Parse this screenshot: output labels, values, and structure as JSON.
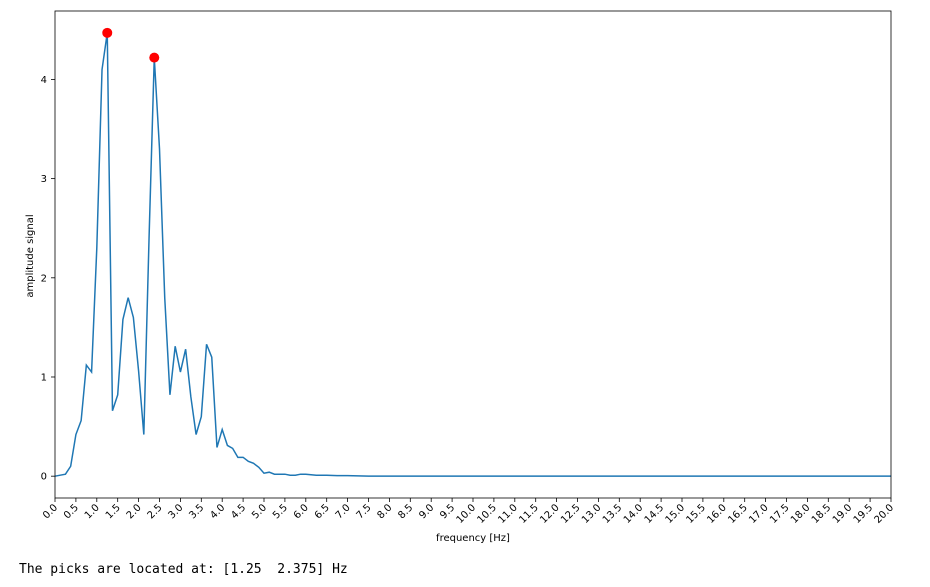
{
  "chart_data": {
    "type": "line",
    "title": "",
    "xlabel": "frequency [Hz]",
    "ylabel": "amplitude signal",
    "xlim": [
      0,
      20
    ],
    "ylim": [
      -0.22,
      4.69
    ],
    "grid": false,
    "x_ticks": [
      0.0,
      0.5,
      1.0,
      1.5,
      2.0,
      2.5,
      3.0,
      3.5,
      4.0,
      4.5,
      5.0,
      5.5,
      6.0,
      6.5,
      7.0,
      7.5,
      8.0,
      8.5,
      9.0,
      9.5,
      10.0,
      10.5,
      11.0,
      11.5,
      12.0,
      12.5,
      13.0,
      13.5,
      14.0,
      14.5,
      15.0,
      15.5,
      16.0,
      16.5,
      17.0,
      17.5,
      18.0,
      18.5,
      19.0,
      19.5,
      20.0
    ],
    "x_tick_labels": [
      "0.0",
      "0.5",
      "1.0",
      "1.5",
      "2.0",
      "2.5",
      "3.0",
      "3.5",
      "4.0",
      "4.5",
      "5.0",
      "5.5",
      "6.0",
      "6.5",
      "7.0",
      "7.5",
      "8.0",
      "8.5",
      "9.0",
      "9.5",
      "10.0",
      "10.5",
      "11.0",
      "11.5",
      "12.0",
      "12.5",
      "13.0",
      "13.5",
      "14.0",
      "14.5",
      "15.0",
      "15.5",
      "16.0",
      "16.5",
      "17.0",
      "17.5",
      "18.0",
      "18.5",
      "19.0",
      "19.5",
      "20.0"
    ],
    "y_ticks": [
      0,
      1,
      2,
      3,
      4
    ],
    "y_tick_labels": [
      "0",
      "1",
      "2",
      "3",
      "4"
    ],
    "series": [
      {
        "color": "#1f77b4",
        "x": [
          0,
          0.125,
          0.25,
          0.375,
          0.5,
          0.625,
          0.75,
          0.875,
          1.0,
          1.125,
          1.25,
          1.375,
          1.5,
          1.625,
          1.75,
          1.875,
          2.0,
          2.125,
          2.25,
          2.375,
          2.5,
          2.625,
          2.75,
          2.875,
          3.0,
          3.125,
          3.25,
          3.375,
          3.5,
          3.625,
          3.75,
          3.875,
          4.0,
          4.125,
          4.25,
          4.375,
          4.5,
          4.625,
          4.75,
          4.875,
          5.0,
          5.125,
          5.25,
          5.375,
          5.5,
          5.625,
          5.75,
          5.875,
          6.0,
          6.25,
          6.5,
          6.75,
          7.0,
          7.5,
          8.0,
          9.0,
          10.0,
          12.0,
          14.0,
          16.0,
          18.0,
          20.0
        ],
        "y": [
          0.0,
          0.01,
          0.02,
          0.1,
          0.42,
          0.56,
          1.12,
          1.05,
          2.3,
          4.1,
          4.47,
          0.66,
          0.82,
          1.58,
          1.8,
          1.6,
          1.06,
          0.42,
          2.4,
          4.22,
          3.3,
          1.8,
          0.82,
          1.31,
          1.05,
          1.28,
          0.8,
          0.42,
          0.6,
          1.33,
          1.2,
          0.29,
          0.47,
          0.31,
          0.28,
          0.19,
          0.19,
          0.15,
          0.13,
          0.09,
          0.03,
          0.04,
          0.02,
          0.02,
          0.02,
          0.01,
          0.01,
          0.02,
          0.02,
          0.01,
          0.01,
          0.005,
          0.005,
          0.0,
          0.0,
          0.0,
          0.0,
          0.0,
          0.0,
          0.0,
          0.0,
          0.0
        ]
      }
    ],
    "markers": {
      "color": "#ff0000",
      "x": [
        1.25,
        2.375
      ],
      "y": [
        4.47,
        4.22
      ]
    }
  },
  "output_text": "The picks are located at: [1.25  2.375] Hz"
}
